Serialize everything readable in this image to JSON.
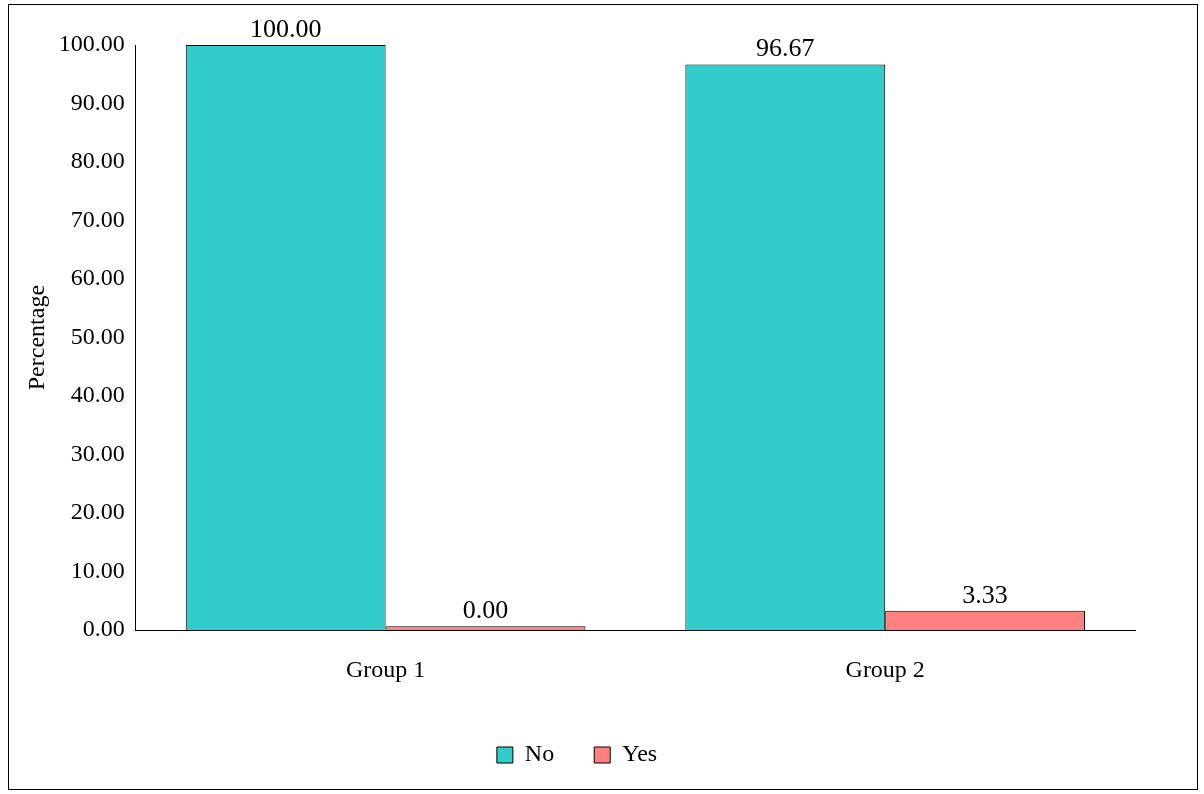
{
  "chart_data": {
    "type": "bar",
    "ylabel": "Percentage",
    "categories": [
      "Group 1",
      "Group 2"
    ],
    "series": [
      {
        "name": "No",
        "color": "#33cccc",
        "values": [
          100,
          96.67
        ],
        "value_labels": [
          "100.00",
          "96.67"
        ]
      },
      {
        "name": "Yes",
        "color": "#ff8080",
        "values": [
          0,
          3.33
        ],
        "value_labels": [
          "0.00",
          "3.33"
        ]
      }
    ],
    "ylim": [
      0,
      100
    ],
    "yticks": [
      {
        "value": 0,
        "label": "0.00"
      },
      {
        "value": 10,
        "label": "10.00"
      },
      {
        "value": 20,
        "label": "20.00"
      },
      {
        "value": 30,
        "label": "30.00"
      },
      {
        "value": 40,
        "label": "40.00"
      },
      {
        "value": 50,
        "label": "50.00"
      },
      {
        "value": 60,
        "label": "60.00"
      },
      {
        "value": 70,
        "label": "70.00"
      },
      {
        "value": 80,
        "label": "80.00"
      },
      {
        "value": 90,
        "label": "90.00"
      },
      {
        "value": 100,
        "label": "100.00"
      }
    ],
    "grid": false,
    "legend": "bottom"
  }
}
